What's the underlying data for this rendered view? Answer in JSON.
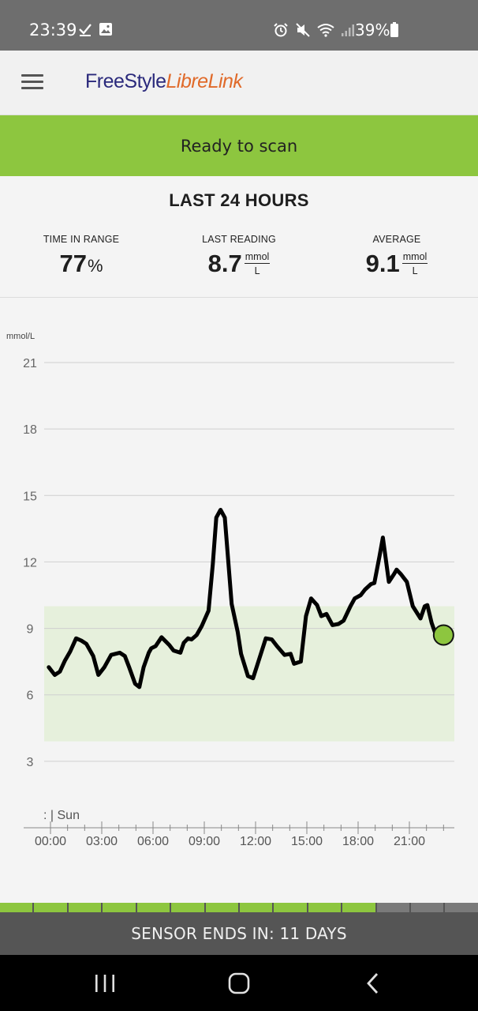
{
  "status_bar": {
    "time": "23:39",
    "battery_text": "39%",
    "icons": [
      "check-icon",
      "image-icon",
      "alarm-icon",
      "mute-icon",
      "wifi-icon",
      "signal-icon",
      "battery-icon"
    ]
  },
  "header": {
    "logo_part1": "FreeStyle",
    "logo_part2": "LibreLink",
    "menu_icon": "hamburger-menu-icon"
  },
  "banner": {
    "text": "Ready to scan",
    "color": "#8dc63f"
  },
  "summary": {
    "title": "LAST 24 HOURS",
    "time_in_range": {
      "label": "TIME IN RANGE",
      "value": "77",
      "unit": "%"
    },
    "last_reading": {
      "label": "LAST READING",
      "value": "8.7",
      "unit_num": "mmol",
      "unit_den": "L"
    },
    "average": {
      "label": "AVERAGE",
      "value": "9.1",
      "unit_num": "mmol",
      "unit_den": "L"
    }
  },
  "chart_data": {
    "type": "line",
    "ylabel": "mmol/L",
    "ylim": [
      0,
      21
    ],
    "yticks": [
      3,
      6,
      9,
      12,
      15,
      18,
      21
    ],
    "xticks": [
      "00:00",
      "03:00",
      "06:00",
      "09:00",
      "12:00",
      "15:00",
      "18:00",
      "21:00"
    ],
    "xlim": [
      0,
      23.8
    ],
    "day_marker": ": | Sun",
    "target_range": [
      3.9,
      10.0
    ],
    "target_color": "#e6f0dc",
    "line_color": "#000000",
    "marker_color": "#8dc63f",
    "grid": true,
    "series": [
      {
        "x": [
          -0.1,
          0.25,
          0.55,
          0.85,
          1.15,
          1.5,
          1.8,
          2.1,
          2.5,
          2.8,
          3.15,
          3.55,
          3.8,
          4.05,
          4.35,
          4.6,
          4.95,
          5.2,
          5.45,
          5.75,
          5.9,
          6.15,
          6.5,
          6.95,
          7.2,
          7.6,
          7.8,
          8.05,
          8.25,
          8.55,
          8.85,
          9.25,
          9.5,
          9.7,
          9.95,
          10.2,
          10.6,
          10.95,
          11.15,
          11.55,
          11.85,
          12.1,
          12.6,
          12.95,
          13.25,
          13.7,
          14.05,
          14.25,
          14.65,
          14.95,
          15.25,
          15.6,
          15.85,
          16.15,
          16.5,
          16.85,
          17.15,
          17.55,
          17.8,
          18.15,
          18.4,
          18.75,
          18.95,
          19.25,
          19.45,
          19.8,
          20.1,
          20.25,
          20.5,
          20.85,
          21.2,
          21.65,
          21.9,
          22.05,
          22.3,
          22.55,
          22.7,
          23.0,
          23.3
        ],
        "y": [
          7.25,
          6.9,
          7.05,
          7.55,
          7.95,
          8.55,
          8.45,
          8.3,
          7.75,
          6.9,
          7.25,
          7.8,
          7.85,
          7.9,
          7.75,
          7.25,
          6.5,
          6.35,
          7.25,
          7.9,
          8.1,
          8.2,
          8.6,
          8.25,
          8.0,
          7.9,
          8.35,
          8.55,
          8.5,
          8.7,
          9.1,
          9.8,
          11.9,
          14.0,
          14.35,
          14.0,
          10.1,
          8.85,
          7.85,
          6.85,
          6.75,
          7.35,
          8.55,
          8.5,
          8.2,
          7.8,
          7.85,
          7.4,
          7.5,
          9.55,
          10.35,
          10.05,
          9.55,
          9.65,
          9.15,
          9.2,
          9.35,
          10.0,
          10.35,
          10.5,
          10.75,
          11.0,
          11.05,
          12.25,
          13.1,
          11.1,
          11.45,
          11.65,
          11.45,
          11.1,
          10.0,
          9.45,
          10.0,
          10.05,
          9.25,
          8.7,
          8.7,
          8.7,
          8.7
        ]
      }
    ],
    "last_point": {
      "x": 23.0,
      "y": 8.7
    }
  },
  "sensor": {
    "text": "SENSOR ENDS IN: 11 DAYS",
    "segments_total": 14,
    "segments_used": 11,
    "used_color": "#8dc63f",
    "remaining_color": "#7a7a7a"
  },
  "nav": {
    "recents": "recent-apps-icon",
    "home": "home-icon",
    "back": "back-icon"
  }
}
